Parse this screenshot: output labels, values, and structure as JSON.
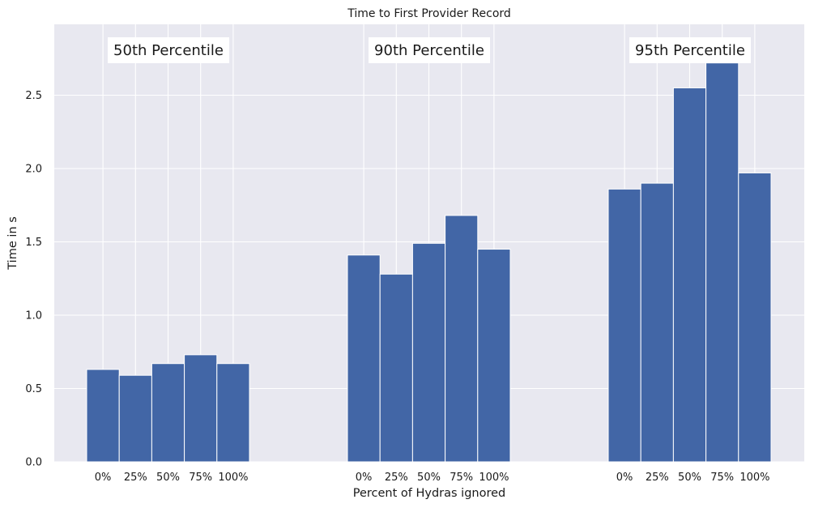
{
  "chart_data": {
    "type": "bar",
    "title": "Time to First Provider Record",
    "xlabel": "Percent of Hydras ignored",
    "ylabel": "Time in s",
    "ylim": [
      0,
      2.97
    ],
    "yticks": [
      "0.0",
      "0.5",
      "1.0",
      "1.5",
      "2.0",
      "2.5"
    ],
    "grid": true,
    "categories": [
      "0%",
      "25%",
      "50%",
      "75%",
      "100%"
    ],
    "groups": [
      {
        "name": "50th Percentile",
        "values": [
          0.63,
          0.59,
          0.67,
          0.73,
          0.67
        ]
      },
      {
        "name": "90th Percentile",
        "values": [
          1.41,
          1.28,
          1.49,
          1.68,
          1.45
        ]
      },
      {
        "name": "95th Percentile",
        "values": [
          1.86,
          1.9,
          2.55,
          2.72,
          1.97
        ]
      }
    ],
    "colors": {
      "bar": "#4266a6",
      "background": "#e8e8f0",
      "grid": "#ffffff"
    }
  }
}
